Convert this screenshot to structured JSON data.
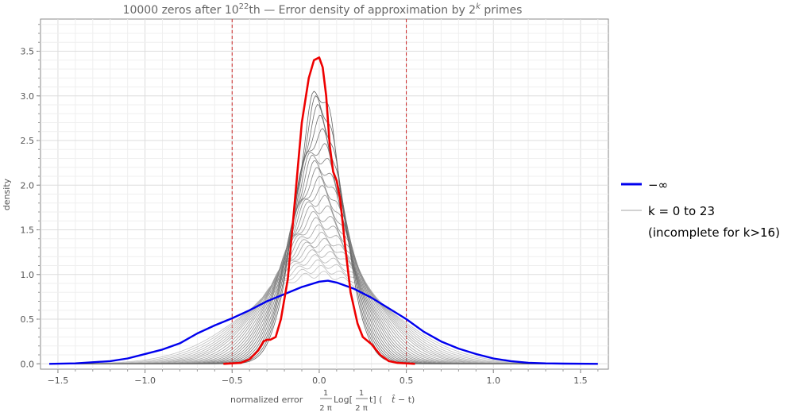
{
  "chart_data": {
    "type": "line",
    "title": "10000 zeros after 10²²th — Error density of approximation by 2ᵏ primes",
    "title_parts": {
      "prefix": "10000 zeros after 10",
      "exp1": "22",
      "middle": "th — Error density of approximation by 2",
      "exp2": "k",
      "suffix": " primes"
    },
    "xlabel": "normalized error",
    "xlabel_formula": {
      "frac1_num": "1",
      "frac1_den": "2 π",
      "log_open": "Log[",
      "frac2_num": "1",
      "frac2_den": "2 π",
      "t_close": "t] (",
      "t_hat": "t̂",
      "rest": " − t)"
    },
    "ylabel": "density",
    "xlim": [
      -1.6,
      1.66
    ],
    "ylim": [
      -0.06,
      3.86
    ],
    "x_ticks": [
      -1.5,
      -1.0,
      -0.5,
      0.0,
      0.5,
      1.0,
      1.5
    ],
    "x_tick_labels": [
      "−1.5",
      "−1.0",
      "−0.5",
      "0.0",
      "0.5",
      "1.0",
      "1.5"
    ],
    "y_ticks": [
      0.0,
      0.5,
      1.0,
      1.5,
      2.0,
      2.5,
      3.0,
      3.5
    ],
    "y_tick_labels": [
      "0.0",
      "0.5",
      "1.0",
      "1.5",
      "2.0",
      "2.5",
      "3.0",
      "3.5"
    ],
    "grid": true,
    "reference_lines": [
      {
        "x": -0.5,
        "color": "#cc2222",
        "style": "dashed"
      },
      {
        "x": 0.5,
        "color": "#cc2222",
        "style": "dashed"
      }
    ],
    "series": [
      {
        "name": "−∞",
        "color": "#0000ee",
        "x": [
          -1.55,
          -1.4,
          -1.2,
          -1.1,
          -1.0,
          -0.9,
          -0.8,
          -0.7,
          -0.6,
          -0.5,
          -0.4,
          -0.3,
          -0.2,
          -0.1,
          0.0,
          0.05,
          0.1,
          0.2,
          0.3,
          0.4,
          0.5,
          0.6,
          0.7,
          0.8,
          0.9,
          1.0,
          1.1,
          1.2,
          1.3,
          1.4,
          1.6
        ],
        "values": [
          0.0,
          0.005,
          0.03,
          0.06,
          0.11,
          0.16,
          0.23,
          0.34,
          0.43,
          0.51,
          0.6,
          0.7,
          0.78,
          0.86,
          0.92,
          0.93,
          0.91,
          0.84,
          0.74,
          0.62,
          0.5,
          0.36,
          0.25,
          0.17,
          0.11,
          0.06,
          0.03,
          0.012,
          0.005,
          0.002,
          0.0
        ]
      },
      {
        "name": "k = 0 to 23",
        "name_line2": "(incomplete for k>16)",
        "color": "#a8a8a8",
        "peaks": [
          1.0,
          1.06,
          1.12,
          1.18,
          1.24,
          1.3,
          1.36,
          1.42,
          1.5,
          1.58,
          1.66,
          1.75,
          1.84,
          1.93,
          2.02,
          2.12,
          2.22,
          2.33,
          2.44,
          2.56,
          2.68,
          2.8,
          2.93,
          3.06
        ]
      },
      {
        "name": "red",
        "color": "#ee0000",
        "x": [
          -0.55,
          -0.45,
          -0.4,
          -0.35,
          -0.32,
          -0.3,
          -0.28,
          -0.25,
          -0.22,
          -0.18,
          -0.15,
          -0.1,
          -0.06,
          -0.03,
          0.0,
          0.02,
          0.04,
          0.06,
          0.08,
          0.1,
          0.12,
          0.15,
          0.18,
          0.22,
          0.25,
          0.3,
          0.35,
          0.4,
          0.45,
          0.55
        ],
        "values": [
          0.0,
          0.01,
          0.05,
          0.15,
          0.25,
          0.27,
          0.27,
          0.3,
          0.5,
          0.95,
          1.6,
          2.7,
          3.2,
          3.4,
          3.43,
          3.32,
          3.0,
          2.45,
          2.15,
          2.05,
          1.85,
          1.3,
          0.8,
          0.45,
          0.3,
          0.22,
          0.1,
          0.03,
          0.01,
          0.0
        ]
      }
    ],
    "legend": {
      "placement": "right",
      "entries": [
        {
          "label": "−∞",
          "color": "#0000ee"
        },
        {
          "label": "k = 0 to 23",
          "label_line2": "(incomplete for k>16)",
          "color": "#b8b8b8"
        }
      ]
    }
  }
}
